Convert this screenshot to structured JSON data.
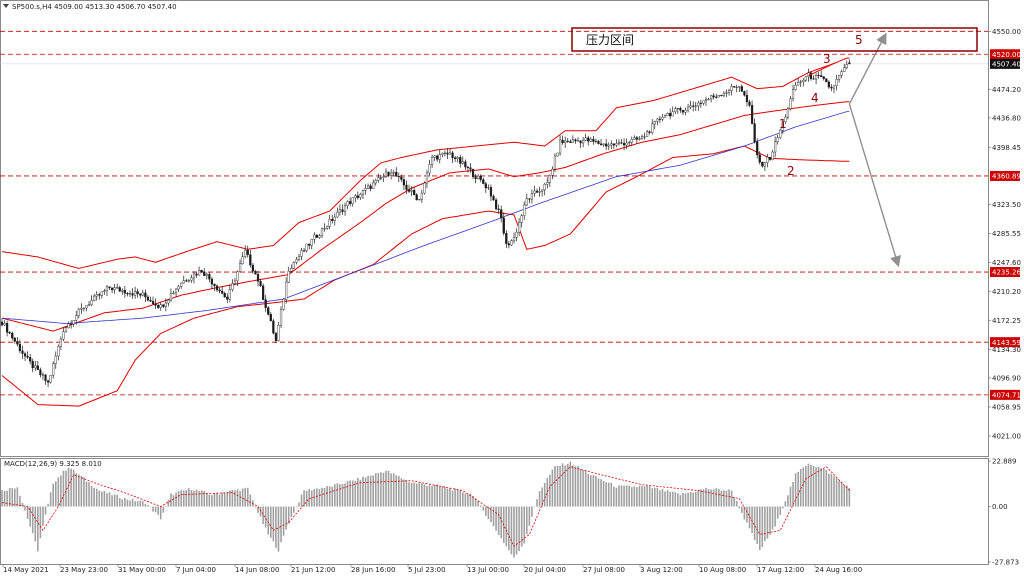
{
  "header": {
    "symbol_line": "SP500.s,H4  4509.00 4513.30 4506.70 4507.40",
    "menu_icon": "triangle-down-icon"
  },
  "annotations": {
    "resistance_zone_label": "压力区间",
    "wave_labels": [
      "1",
      "2",
      "3",
      "4",
      "5"
    ]
  },
  "colors": {
    "candles": "#1a1a1a",
    "bollinger": "#e00000",
    "moving_average": "#3333cc",
    "levels": "#c00000",
    "level_tag": "#cc0000",
    "macd_hist": "#a0a0a0",
    "macd_signal": "#e00000",
    "forecast_arrow": "#909090"
  },
  "chart_data": [
    {
      "type": "candlestick",
      "title": "SP500.s,H4",
      "ohlc_last": {
        "open": 4509.0,
        "high": 4513.3,
        "low": 4506.7,
        "close": 4507.4
      },
      "x_tick_labels": [
        "14 May 2021",
        "23 May 23:00",
        "31 May 00:00",
        "7 Jun 04:00",
        "14 Jun 08:00",
        "21 Jun 12:00",
        "28 Jun 16:00",
        "5 Jul 23:00",
        "13 Jul 00:00",
        "20 Jul 04:00",
        "27 Jul 08:00",
        "3 Aug 12:00",
        "10 Aug 08:00",
        "17 Aug 12:00",
        "24 Aug 16:00"
      ],
      "y_tick_labels": [
        "4550.00",
        "4520.00",
        "4507.40",
        "4474.20",
        "4436.80",
        "4398.45",
        "4360.89",
        "4323.50",
        "4285.55",
        "4247.60",
        "4235.26",
        "4210.20",
        "4172.25",
        "4143.59",
        "4134.30",
        "4096.90",
        "4074.71",
        "4058.95",
        "4021.00"
      ],
      "ylim": [
        4000,
        4570
      ],
      "horizontal_levels": [
        4550.0,
        4520.0,
        4360.89,
        4235.26,
        4143.59,
        4074.71
      ],
      "highlighted_levels": [
        4520.0,
        4360.89,
        4235.26,
        4143.59,
        4074.71
      ],
      "current_price": 4507.4,
      "close_path": [
        [
          0,
          4170
        ],
        [
          10,
          4120
        ],
        [
          18,
          4090
        ],
        [
          24,
          4160
        ],
        [
          32,
          4190
        ],
        [
          42,
          4215
        ],
        [
          55,
          4205
        ],
        [
          62,
          4190
        ],
        [
          70,
          4222
        ],
        [
          78,
          4238
        ],
        [
          88,
          4200
        ],
        [
          95,
          4262
        ],
        [
          100,
          4225
        ],
        [
          104,
          4180
        ],
        [
          107,
          4145
        ],
        [
          112,
          4240
        ],
        [
          122,
          4280
        ],
        [
          135,
          4325
        ],
        [
          145,
          4350
        ],
        [
          152,
          4368
        ],
        [
          158,
          4345
        ],
        [
          163,
          4330
        ],
        [
          168,
          4385
        ],
        [
          175,
          4390
        ],
        [
          182,
          4370
        ],
        [
          190,
          4345
        ],
        [
          195,
          4305
        ],
        [
          197,
          4270
        ],
        [
          200,
          4280
        ],
        [
          205,
          4330
        ],
        [
          213,
          4350
        ],
        [
          218,
          4405
        ],
        [
          228,
          4408
        ],
        [
          235,
          4402
        ],
        [
          240,
          4402
        ],
        [
          250,
          4410
        ],
        [
          258,
          4440
        ],
        [
          268,
          4450
        ],
        [
          276,
          4462
        ],
        [
          282,
          4470
        ],
        [
          288,
          4480
        ],
        [
          292,
          4450
        ],
        [
          294,
          4405
        ],
        [
          296,
          4375
        ],
        [
          300,
          4385
        ],
        [
          304,
          4420
        ],
        [
          310,
          4480
        ],
        [
          315,
          4492
        ],
        [
          320,
          4488
        ],
        [
          324,
          4475
        ],
        [
          328,
          4496
        ],
        [
          331,
          4507.4
        ]
      ],
      "bollinger_upper": [
        [
          0,
          4262
        ],
        [
          14,
          4255
        ],
        [
          30,
          4240
        ],
        [
          45,
          4252
        ],
        [
          52,
          4255
        ],
        [
          60,
          4248
        ],
        [
          72,
          4262
        ],
        [
          84,
          4275
        ],
        [
          96,
          4265
        ],
        [
          106,
          4270
        ],
        [
          116,
          4300
        ],
        [
          128,
          4315
        ],
        [
          140,
          4355
        ],
        [
          148,
          4378
        ],
        [
          156,
          4385
        ],
        [
          170,
          4395
        ],
        [
          185,
          4400
        ],
        [
          200,
          4405
        ],
        [
          212,
          4400
        ],
        [
          220,
          4420
        ],
        [
          232,
          4420
        ],
        [
          240,
          4450
        ],
        [
          255,
          4460
        ],
        [
          270,
          4475
        ],
        [
          285,
          4490
        ],
        [
          295,
          4475
        ],
        [
          305,
          4478
        ],
        [
          315,
          4496
        ],
        [
          325,
          4508
        ],
        [
          330,
          4515
        ]
      ],
      "bollinger_middle": [
        [
          0,
          4175
        ],
        [
          20,
          4158
        ],
        [
          40,
          4182
        ],
        [
          55,
          4188
        ],
        [
          70,
          4205
        ],
        [
          84,
          4215
        ],
        [
          100,
          4225
        ],
        [
          112,
          4232
        ],
        [
          125,
          4265
        ],
        [
          140,
          4300
        ],
        [
          150,
          4325
        ],
        [
          160,
          4345
        ],
        [
          175,
          4365
        ],
        [
          190,
          4370
        ],
        [
          200,
          4360
        ],
        [
          210,
          4365
        ],
        [
          220,
          4372
        ],
        [
          235,
          4390
        ],
        [
          250,
          4405
        ],
        [
          265,
          4415
        ],
        [
          280,
          4430
        ],
        [
          290,
          4440
        ],
        [
          300,
          4445
        ],
        [
          315,
          4452
        ],
        [
          330,
          4458
        ]
      ],
      "bollinger_lower": [
        [
          0,
          4100
        ],
        [
          14,
          4062
        ],
        [
          30,
          4060
        ],
        [
          45,
          4080
        ],
        [
          52,
          4120
        ],
        [
          62,
          4155
        ],
        [
          75,
          4175
        ],
        [
          92,
          4190
        ],
        [
          106,
          4195
        ],
        [
          118,
          4200
        ],
        [
          130,
          4225
        ],
        [
          145,
          4245
        ],
        [
          160,
          4285
        ],
        [
          172,
          4305
        ],
        [
          190,
          4315
        ],
        [
          200,
          4310
        ],
        [
          205,
          4265
        ],
        [
          212,
          4270
        ],
        [
          222,
          4285
        ],
        [
          236,
          4340
        ],
        [
          248,
          4360
        ],
        [
          262,
          4385
        ],
        [
          278,
          4390
        ],
        [
          290,
          4400
        ],
        [
          300,
          4384
        ],
        [
          312,
          4382
        ],
        [
          330,
          4380
        ]
      ],
      "moving_average": [
        [
          0,
          4175
        ],
        [
          25,
          4168
        ],
        [
          55,
          4175
        ],
        [
          80,
          4185
        ],
        [
          110,
          4200
        ],
        [
          140,
          4238
        ],
        [
          165,
          4270
        ],
        [
          190,
          4300
        ],
        [
          210,
          4325
        ],
        [
          240,
          4360
        ],
        [
          265,
          4375
        ],
        [
          290,
          4400
        ],
        [
          310,
          4425
        ],
        [
          330,
          4445
        ]
      ],
      "forecast_paths": [
        {
          "from": [
            331,
            4455
          ],
          "to": [
            345,
            4545
          ]
        },
        {
          "from": [
            331,
            4455
          ],
          "to": [
            350,
            4245
          ]
        },
        {
          "from": [
            315,
            4492
          ],
          "to": [
            325,
            4508
          ]
        }
      ]
    },
    {
      "type": "bar",
      "title": "MACD(12,26,9) 9.325 8.010",
      "y_tick_labels": [
        "22.889",
        "0.00",
        "-27.873"
      ],
      "ylim": [
        -27.873,
        22.889
      ],
      "histogram_path": [
        [
          0,
          8
        ],
        [
          6,
          10
        ],
        [
          10,
          -6
        ],
        [
          14,
          -22
        ],
        [
          16,
          -10
        ],
        [
          20,
          12
        ],
        [
          26,
          20
        ],
        [
          30,
          16
        ],
        [
          38,
          8
        ],
        [
          48,
          4
        ],
        [
          56,
          2
        ],
        [
          62,
          -6
        ],
        [
          66,
          6
        ],
        [
          74,
          9
        ],
        [
          82,
          6
        ],
        [
          90,
          8
        ],
        [
          96,
          9
        ],
        [
          100,
          -3
        ],
        [
          104,
          -14
        ],
        [
          108,
          -22
        ],
        [
          112,
          -8
        ],
        [
          118,
          8
        ],
        [
          128,
          10
        ],
        [
          140,
          14
        ],
        [
          150,
          18
        ],
        [
          160,
          12
        ],
        [
          172,
          10
        ],
        [
          184,
          6
        ],
        [
          194,
          -14
        ],
        [
          200,
          -26
        ],
        [
          204,
          -18
        ],
        [
          210,
          8
        ],
        [
          216,
          20
        ],
        [
          222,
          22
        ],
        [
          230,
          16
        ],
        [
          240,
          10
        ],
        [
          252,
          10
        ],
        [
          265,
          6
        ],
        [
          275,
          9
        ],
        [
          285,
          8
        ],
        [
          290,
          -6
        ],
        [
          296,
          -22
        ],
        [
          302,
          -10
        ],
        [
          310,
          16
        ],
        [
          315,
          22
        ],
        [
          322,
          18
        ],
        [
          331,
          9.3
        ]
      ],
      "signal_path": [
        [
          0,
          2
        ],
        [
          10,
          0
        ],
        [
          16,
          -12
        ],
        [
          22,
          0
        ],
        [
          28,
          16
        ],
        [
          36,
          12
        ],
        [
          50,
          6
        ],
        [
          62,
          0
        ],
        [
          70,
          6
        ],
        [
          90,
          7
        ],
        [
          100,
          0
        ],
        [
          106,
          -12
        ],
        [
          112,
          -8
        ],
        [
          120,
          4
        ],
        [
          140,
          12
        ],
        [
          160,
          13
        ],
        [
          180,
          8
        ],
        [
          194,
          -4
        ],
        [
          200,
          -20
        ],
        [
          206,
          -14
        ],
        [
          214,
          10
        ],
        [
          222,
          20
        ],
        [
          234,
          16
        ],
        [
          250,
          11
        ],
        [
          272,
          8
        ],
        [
          288,
          4
        ],
        [
          296,
          -14
        ],
        [
          304,
          -12
        ],
        [
          314,
          14
        ],
        [
          322,
          20
        ],
        [
          331,
          8.01
        ]
      ]
    }
  ]
}
